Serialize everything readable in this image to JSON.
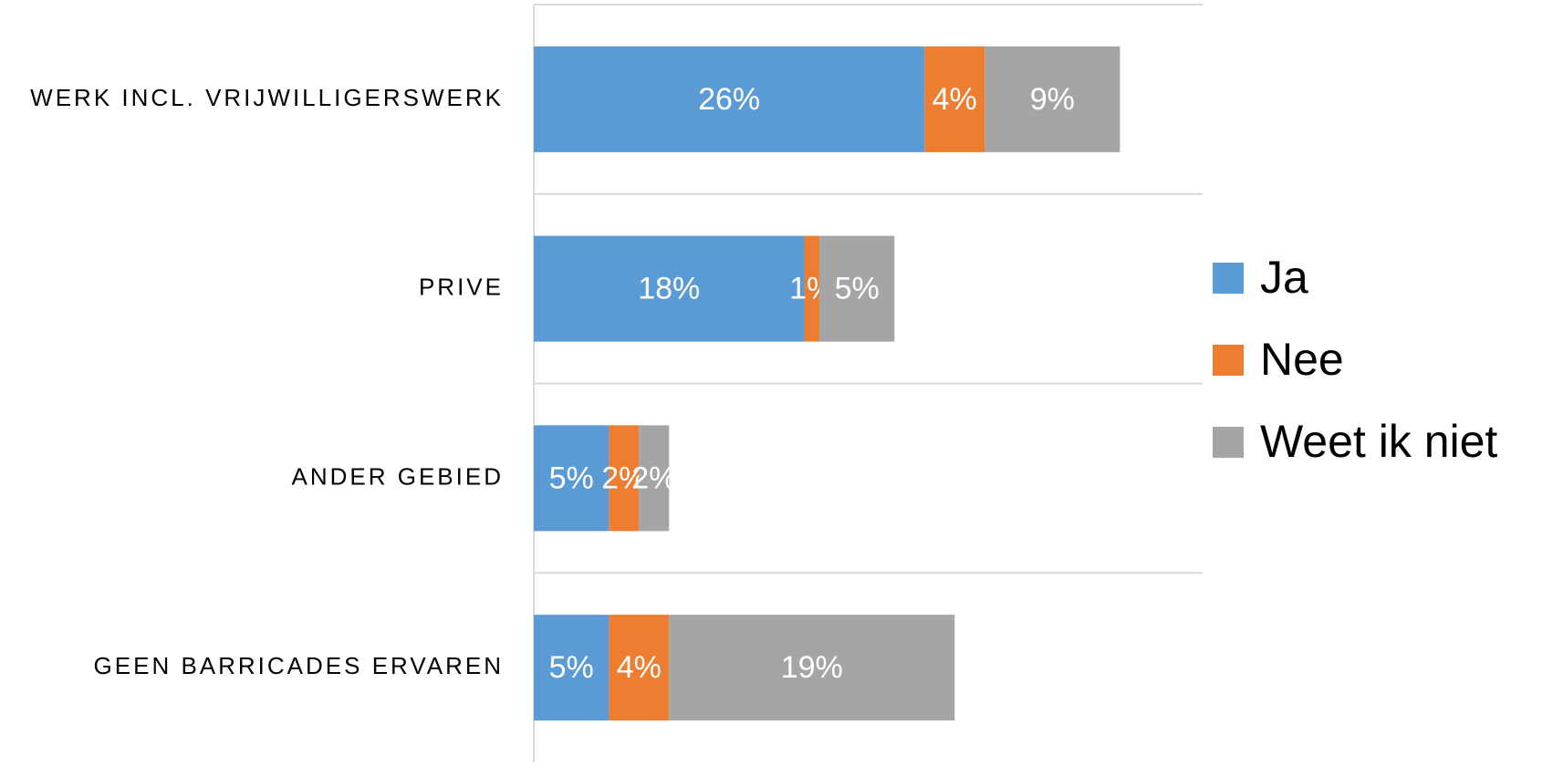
{
  "chart_data": {
    "type": "stacked_barh",
    "categories": [
      "WERK INCL. VRIJWILLIGERSWERK",
      "PRIVE",
      "ANDER GEBIED",
      "GEEN BARRICADES ERVAREN"
    ],
    "series": [
      {
        "name": "Ja",
        "color": "#5b9bd5",
        "values": [
          26,
          18,
          5,
          5
        ],
        "value_labels": [
          "26%",
          "18%",
          "5%",
          "5%"
        ]
      },
      {
        "name": "Nee",
        "color": "#ed7d31",
        "values": [
          4,
          1,
          2,
          4
        ],
        "value_labels": [
          "4%",
          "1%",
          "2%",
          "4%"
        ]
      },
      {
        "name": "Weet ik niet",
        "color": "#a5a5a5",
        "values": [
          9,
          5,
          2,
          19
        ],
        "value_labels": [
          "9%",
          "5%",
          "2%",
          "19%"
        ]
      }
    ],
    "xlim": [
      0,
      44.5
    ],
    "legend": "right"
  }
}
